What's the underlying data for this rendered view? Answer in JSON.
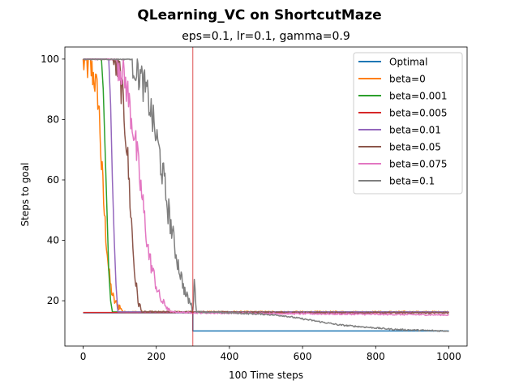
{
  "chart_data": {
    "type": "line",
    "suptitle": "QLearning_VC on ShortcutMaze",
    "title": "eps=0.1, lr=0.1, gamma=0.9",
    "xlabel": "100 Time steps",
    "ylabel": "Steps to goal",
    "xlim": [
      -50,
      1050
    ],
    "ylim": [
      5,
      104
    ],
    "xticks": [
      0,
      200,
      400,
      600,
      800,
      1000
    ],
    "yticks": [
      20,
      40,
      60,
      80,
      100
    ],
    "grid": false,
    "legend_position": "top-right",
    "vline": {
      "x": 300,
      "color": "#d62728"
    },
    "series": [
      {
        "name": "Optimal",
        "color": "#1f77b4",
        "mode": "step",
        "x": [
          0,
          300,
          300,
          1000
        ],
        "y": [
          16,
          16,
          10,
          10
        ]
      },
      {
        "name": "beta=0",
        "color": "#ff7f0e",
        "mode": "noisy",
        "x": [
          0,
          10,
          20,
          30,
          40,
          45,
          50,
          55,
          60,
          65,
          70,
          75,
          80,
          85,
          90,
          100,
          110,
          1000
        ],
        "y": [
          99,
          98,
          97,
          94,
          88,
          80,
          65,
          55,
          45,
          38,
          30,
          25,
          22,
          20,
          19,
          18,
          16.3,
          16.3
        ]
      },
      {
        "name": "beta=0.001",
        "color": "#2ca02c",
        "mode": "smooth",
        "x": [
          0,
          50,
          55,
          60,
          65,
          70,
          75,
          80,
          1000
        ],
        "y": [
          100,
          100,
          90,
          70,
          50,
          30,
          20,
          16.3,
          16.3
        ]
      },
      {
        "name": "beta=0.005",
        "color": "#d62728",
        "mode": "smooth",
        "x": [
          0,
          300,
          600,
          1000
        ],
        "y": [
          16.1,
          16.1,
          16.1,
          16.1
        ]
      },
      {
        "name": "beta=0.01",
        "color": "#9467bd",
        "mode": "smooth",
        "x": [
          0,
          70,
          75,
          80,
          85,
          90,
          95,
          1000
        ],
        "y": [
          100,
          100,
          85,
          60,
          40,
          25,
          16.3,
          16.3
        ]
      },
      {
        "name": "beta=0.05",
        "color": "#8c564b",
        "mode": "noisy",
        "x": [
          0,
          80,
          90,
          100,
          110,
          120,
          130,
          140,
          150,
          160,
          300,
          500,
          700,
          900,
          1000
        ],
        "y": [
          100,
          100,
          98,
          95,
          85,
          70,
          50,
          30,
          20,
          16.3,
          16.3,
          16.2,
          16,
          16,
          16
        ]
      },
      {
        "name": "beta=0.075",
        "color": "#e377c2",
        "mode": "noisy",
        "x": [
          0,
          90,
          100,
          110,
          120,
          130,
          140,
          150,
          160,
          170,
          180,
          190,
          200,
          210,
          220,
          230,
          240,
          300,
          1000
        ],
        "y": [
          100,
          100,
          98,
          95,
          90,
          82,
          75,
          65,
          55,
          45,
          35,
          30,
          25,
          21,
          19,
          18,
          16.3,
          16,
          15.3
        ]
      },
      {
        "name": "beta=0.1",
        "color": "#7f7f7f",
        "mode": "noisy",
        "x": [
          0,
          130,
          140,
          150,
          160,
          170,
          180,
          190,
          200,
          210,
          220,
          230,
          240,
          250,
          260,
          270,
          280,
          290,
          300,
          305,
          310,
          400,
          500,
          550,
          600,
          650,
          700,
          750,
          800,
          850,
          900,
          950,
          1000
        ],
        "y": [
          100,
          100,
          98,
          96,
          93,
          90,
          86,
          80,
          74,
          68,
          60,
          52,
          45,
          38,
          32,
          27,
          22,
          20,
          17,
          27,
          16.3,
          16,
          15.5,
          15,
          14,
          13,
          12,
          11.5,
          11,
          10.5,
          10.3,
          10.1,
          10
        ]
      }
    ]
  }
}
